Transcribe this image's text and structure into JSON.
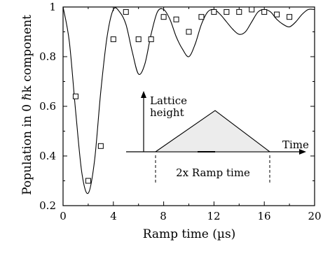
{
  "chart_data": {
    "type": "scatter",
    "xlabel": "Ramp time (µs)",
    "ylabel": "Population in 0 ℏk component",
    "xlim": [
      0,
      20
    ],
    "ylim": [
      0.2,
      1.0
    ],
    "x_ticks": [
      "0",
      "4",
      "8",
      "12",
      "16",
      "20"
    ],
    "y_ticks": [
      "0.2",
      "0.4",
      "0.6",
      "0.8",
      "1"
    ],
    "grid": false,
    "legend": "none",
    "series": [
      {
        "style": "markers-open-square",
        "x": [
          1,
          2,
          3,
          4,
          5,
          6,
          7,
          8,
          9,
          10,
          11,
          12,
          13,
          14,
          15,
          16,
          17,
          18
        ],
        "y": [
          0.64,
          0.3,
          0.44,
          0.87,
          0.98,
          0.87,
          0.87,
          0.96,
          0.95,
          0.9,
          0.96,
          0.98,
          0.98,
          0.98,
          0.99,
          0.98,
          0.97,
          0.96
        ]
      },
      {
        "style": "line",
        "x": [
          0,
          0.5,
          1,
          1.5,
          2,
          2.5,
          3,
          3.5,
          4,
          4.5,
          5,
          5.5,
          6,
          6.5,
          7,
          7.5,
          8,
          8.5,
          9,
          9.5,
          10,
          10.5,
          11,
          11.5,
          12,
          12.5,
          13,
          13.5,
          14,
          14.5,
          15,
          15.5,
          16,
          16.5,
          17,
          17.5,
          18,
          18.5,
          19,
          19.5,
          20
        ],
        "y": [
          1.0,
          0.86,
          0.58,
          0.33,
          0.25,
          0.38,
          0.66,
          0.88,
          0.99,
          0.98,
          0.93,
          0.82,
          0.73,
          0.77,
          0.89,
          0.98,
          0.99,
          0.95,
          0.88,
          0.83,
          0.8,
          0.85,
          0.93,
          0.98,
          0.99,
          0.97,
          0.94,
          0.91,
          0.89,
          0.9,
          0.94,
          0.98,
          0.99,
          0.98,
          0.95,
          0.93,
          0.92,
          0.94,
          0.97,
          0.99,
          0.99
        ]
      }
    ],
    "inset": {
      "y_axis_label_line1": "Lattice",
      "y_axis_label_line2": "height",
      "x_axis_label": "Time",
      "span_label": "2x Ramp time"
    }
  }
}
